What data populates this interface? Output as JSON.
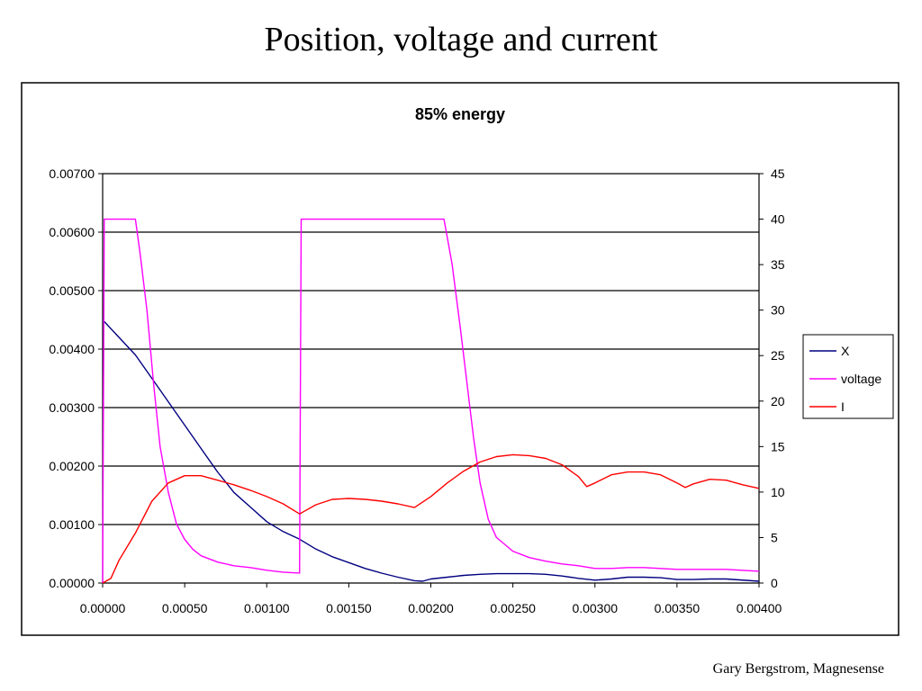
{
  "slide": {
    "title": "Position, voltage and current",
    "footer": "Gary Bergstrom, Magnesense"
  },
  "chart_data": {
    "type": "line",
    "title": "85% energy",
    "xlabel": "",
    "ylabel": "",
    "y2label": "",
    "xlim": [
      0,
      0.004
    ],
    "ylim": [
      0,
      0.007
    ],
    "y2lim": [
      0,
      45
    ],
    "grid": true,
    "legend_position": "right",
    "x_ticks": [
      "0.00000",
      "0.00050",
      "0.00100",
      "0.00150",
      "0.00200",
      "0.00250",
      "0.00300",
      "0.00350",
      "0.00400"
    ],
    "y_ticks": [
      "0.00000",
      "0.00100",
      "0.00200",
      "0.00300",
      "0.00400",
      "0.00500",
      "0.00600",
      "0.00700"
    ],
    "y2_ticks": [
      "0",
      "5",
      "10",
      "15",
      "20",
      "25",
      "30",
      "35",
      "40",
      "45"
    ],
    "series": [
      {
        "name": "X",
        "axis": "left",
        "color": "#000080",
        "points": [
          [
            0,
            0.0045
          ],
          [
            0.0001,
            0.0042
          ],
          [
            0.0002,
            0.0039
          ],
          [
            0.0003,
            0.0035
          ],
          [
            0.0004,
            0.0031
          ],
          [
            0.0005,
            0.0027
          ],
          [
            0.0006,
            0.0023
          ],
          [
            0.0007,
            0.0019
          ],
          [
            0.0008,
            0.00155
          ],
          [
            0.0009,
            0.0013
          ],
          [
            0.001,
            0.00105
          ],
          [
            0.0011,
            0.00088
          ],
          [
            0.0012,
            0.00075
          ],
          [
            0.0013,
            0.00058
          ],
          [
            0.0014,
            0.00045
          ],
          [
            0.0015,
            0.00035
          ],
          [
            0.0016,
            0.00025
          ],
          [
            0.0017,
            0.00017
          ],
          [
            0.0018,
            0.0001
          ],
          [
            0.0019,
            4e-05
          ],
          [
            0.00195,
            3e-05
          ],
          [
            0.002,
            7e-05
          ],
          [
            0.0021,
            0.0001
          ],
          [
            0.0022,
            0.00013
          ],
          [
            0.0023,
            0.00015
          ],
          [
            0.0024,
            0.00016
          ],
          [
            0.0025,
            0.00016
          ],
          [
            0.0026,
            0.00016
          ],
          [
            0.0027,
            0.00015
          ],
          [
            0.0028,
            0.00012
          ],
          [
            0.0029,
            8e-05
          ],
          [
            0.003,
            5e-05
          ],
          [
            0.0031,
            7e-05
          ],
          [
            0.0032,
            0.0001
          ],
          [
            0.0033,
            0.0001
          ],
          [
            0.0034,
            9e-05
          ],
          [
            0.0035,
            6e-05
          ],
          [
            0.0036,
            6e-05
          ],
          [
            0.0037,
            7e-05
          ],
          [
            0.0038,
            7e-05
          ],
          [
            0.004,
            3e-05
          ]
        ]
      },
      {
        "name": "voltage",
        "axis": "right",
        "color": "#ff00ff",
        "points": [
          [
            0,
            0
          ],
          [
            1e-05,
            40
          ],
          [
            0.0002,
            40
          ],
          [
            0.00023,
            36
          ],
          [
            0.00027,
            30
          ],
          [
            0.00031,
            22
          ],
          [
            0.00035,
            15
          ],
          [
            0.0004,
            10
          ],
          [
            0.00045,
            6.5
          ],
          [
            0.0005,
            4.8
          ],
          [
            0.00055,
            3.7
          ],
          [
            0.0006,
            3
          ],
          [
            0.0007,
            2.3
          ],
          [
            0.0008,
            1.9
          ],
          [
            0.0009,
            1.7
          ],
          [
            0.001,
            1.4
          ],
          [
            0.0011,
            1.2
          ],
          [
            0.0012,
            1.1
          ],
          [
            0.00121,
            40
          ],
          [
            0.00208,
            40
          ],
          [
            0.00213,
            35
          ],
          [
            0.00218,
            28
          ],
          [
            0.00222,
            22
          ],
          [
            0.00226,
            16
          ],
          [
            0.0023,
            11
          ],
          [
            0.00235,
            7
          ],
          [
            0.0024,
            5
          ],
          [
            0.0025,
            3.5
          ],
          [
            0.0026,
            2.8
          ],
          [
            0.0027,
            2.4
          ],
          [
            0.0028,
            2.1
          ],
          [
            0.0029,
            1.9
          ],
          [
            0.003,
            1.6
          ],
          [
            0.0031,
            1.6
          ],
          [
            0.0032,
            1.7
          ],
          [
            0.0033,
            1.7
          ],
          [
            0.0034,
            1.6
          ],
          [
            0.0035,
            1.5
          ],
          [
            0.0036,
            1.5
          ],
          [
            0.0037,
            1.5
          ],
          [
            0.0038,
            1.5
          ],
          [
            0.004,
            1.3
          ]
        ]
      },
      {
        "name": "I",
        "axis": "right",
        "color": "#ff0000",
        "points": [
          [
            0,
            0
          ],
          [
            5e-05,
            0.5
          ],
          [
            0.0001,
            2.5
          ],
          [
            0.0002,
            5.5
          ],
          [
            0.0003,
            9
          ],
          [
            0.0004,
            11
          ],
          [
            0.0005,
            11.8
          ],
          [
            0.0006,
            11.8
          ],
          [
            0.0007,
            11.3
          ],
          [
            0.0008,
            10.8
          ],
          [
            0.0009,
            10.2
          ],
          [
            0.001,
            9.5
          ],
          [
            0.0011,
            8.7
          ],
          [
            0.0012,
            7.6
          ],
          [
            0.0013,
            8.6
          ],
          [
            0.0014,
            9.2
          ],
          [
            0.0015,
            9.3
          ],
          [
            0.0016,
            9.2
          ],
          [
            0.0017,
            9
          ],
          [
            0.0018,
            8.7
          ],
          [
            0.0019,
            8.3
          ],
          [
            0.002,
            9.5
          ],
          [
            0.0021,
            11
          ],
          [
            0.0022,
            12.3
          ],
          [
            0.0023,
            13.3
          ],
          [
            0.0024,
            13.9
          ],
          [
            0.0025,
            14.1
          ],
          [
            0.0026,
            14
          ],
          [
            0.0027,
            13.7
          ],
          [
            0.0028,
            13
          ],
          [
            0.0029,
            11.7
          ],
          [
            0.00295,
            10.6
          ],
          [
            0.003,
            11
          ],
          [
            0.0031,
            11.9
          ],
          [
            0.0032,
            12.2
          ],
          [
            0.0033,
            12.2
          ],
          [
            0.0034,
            11.9
          ],
          [
            0.0035,
            11
          ],
          [
            0.00355,
            10.5
          ],
          [
            0.0036,
            10.9
          ],
          [
            0.0037,
            11.4
          ],
          [
            0.0038,
            11.3
          ],
          [
            0.0039,
            10.8
          ],
          [
            0.004,
            10.4
          ]
        ]
      }
    ]
  }
}
